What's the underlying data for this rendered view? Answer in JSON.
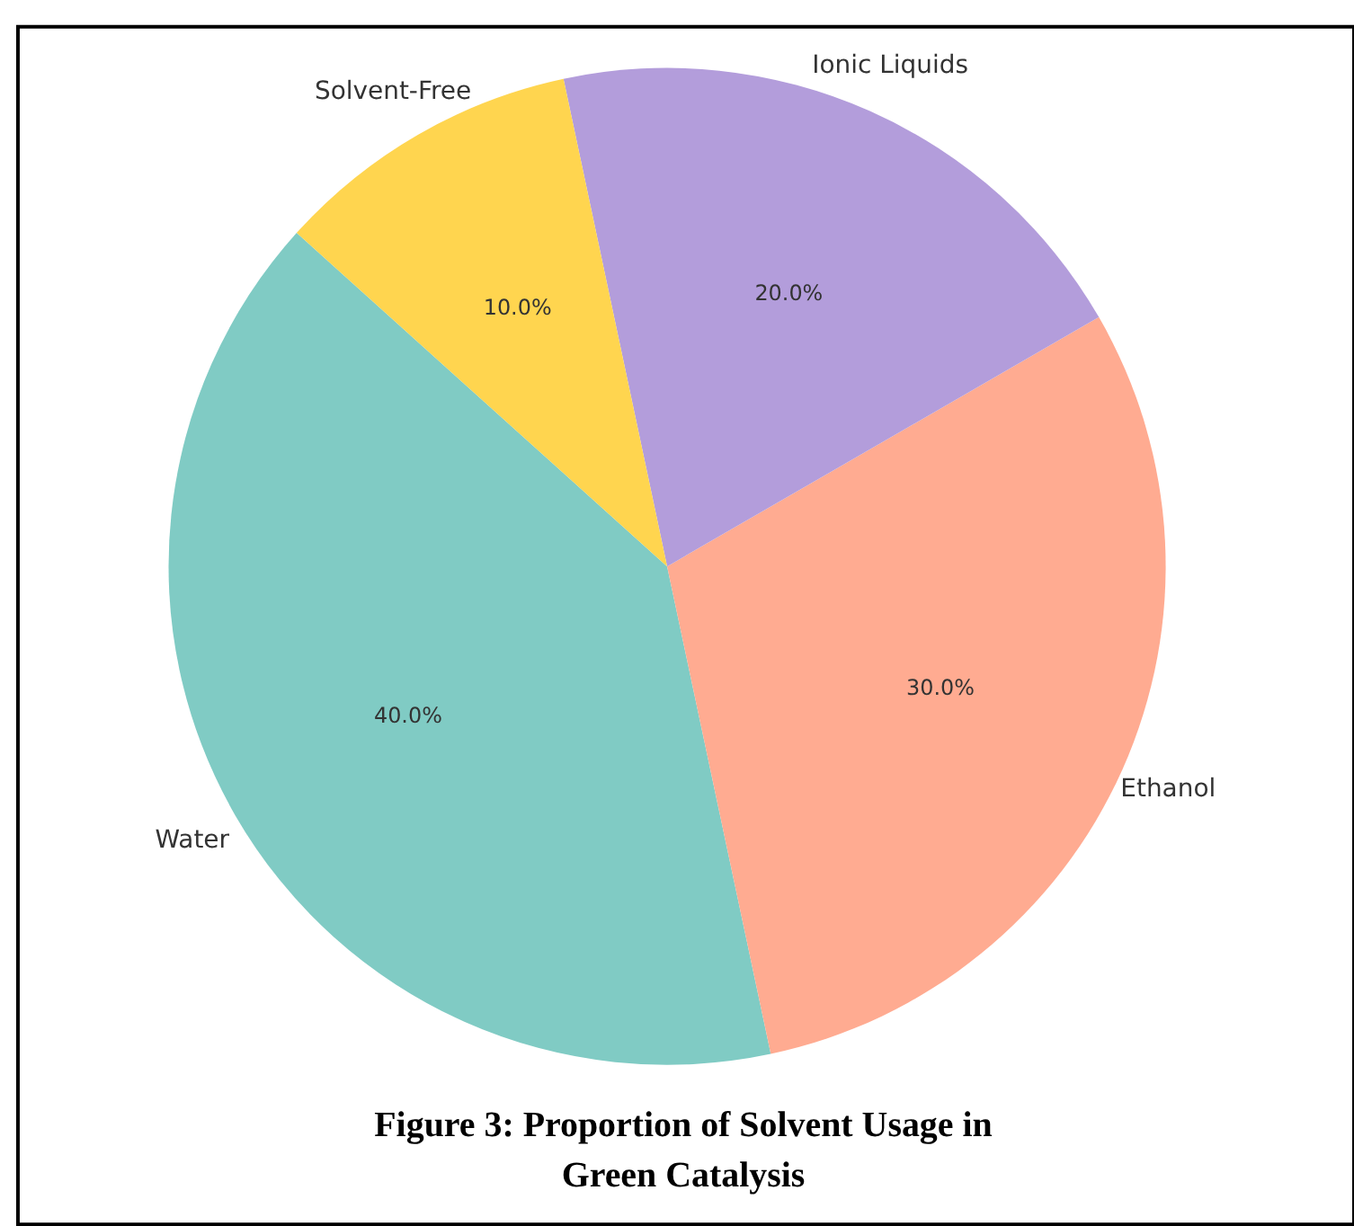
{
  "chart_data": {
    "type": "pie",
    "title": "Figure 3: Proportion of Solvent Usage in Green Catalysis",
    "categories": [
      "Water",
      "Ethanol",
      "Ionic Liquids",
      "Solvent-Free"
    ],
    "values": [
      40,
      30,
      20,
      10
    ],
    "colors": [
      "#80cbc4",
      "#ffab91",
      "#b39ddb",
      "#ffd54f"
    ],
    "value_labels": [
      "40.0%",
      "30.0%",
      "20.0%",
      "10.0%"
    ]
  }
}
